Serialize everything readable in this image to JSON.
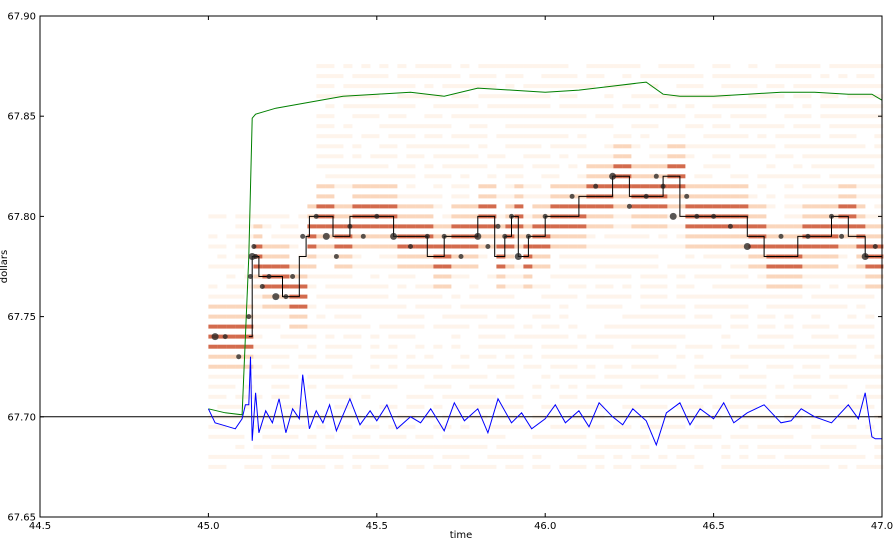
{
  "chart_data": {
    "type": "line",
    "title": "",
    "xlabel": "time",
    "ylabel": "dollars",
    "xlim": [
      44.5,
      47.0
    ],
    "ylim": [
      67.65,
      67.9
    ],
    "x_ticks": [
      "44.5",
      "45.0",
      "45.5",
      "46.0",
      "46.5",
      "47.0"
    ],
    "y_ticks": [
      "67.65",
      "67.70",
      "67.75",
      "67.80",
      "67.85",
      "67.90"
    ],
    "grid": false,
    "legend": "none",
    "reference_line": {
      "y": 67.7,
      "color": "#000000"
    },
    "colors": {
      "upper": "#008000",
      "lower": "#0000ff",
      "mid": "#000000",
      "heat_low": "#fde0c5",
      "heat_mid": "#f4a36a",
      "heat_high": "#c43a12",
      "markers": "#222222"
    },
    "series": [
      {
        "color": "#008000",
        "x": [
          45.0,
          45.05,
          45.1,
          45.12,
          45.13,
          45.14,
          45.2,
          45.3,
          45.4,
          45.5,
          45.6,
          45.7,
          45.8,
          45.9,
          46.0,
          46.1,
          46.2,
          46.3,
          46.35,
          46.4,
          46.5,
          46.6,
          46.7,
          46.8,
          46.9,
          46.97,
          47.0
        ],
        "y": [
          67.704,
          67.702,
          67.701,
          67.78,
          67.849,
          67.851,
          67.854,
          67.857,
          67.86,
          67.861,
          67.862,
          67.86,
          67.864,
          67.863,
          67.862,
          67.863,
          67.865,
          67.867,
          67.861,
          67.86,
          67.86,
          67.861,
          67.862,
          67.862,
          67.861,
          67.861,
          67.858
        ]
      },
      {
        "color": "#000000",
        "x": [
          45.12,
          45.13,
          45.14,
          45.15,
          45.2,
          45.22,
          45.24,
          45.27,
          45.29,
          45.3,
          45.35,
          45.37,
          45.4,
          45.42,
          45.5,
          45.55,
          45.6,
          45.65,
          45.7,
          45.75,
          45.8,
          45.85,
          45.88,
          45.9,
          45.92,
          45.95,
          46.0,
          46.05,
          46.1,
          46.15,
          46.2,
          46.25,
          46.3,
          46.35,
          46.4,
          46.45,
          46.5,
          46.55,
          46.6,
          46.65,
          46.7,
          46.75,
          46.8,
          46.85,
          46.9,
          46.95,
          47.0
        ],
        "y": [
          67.74,
          67.78,
          67.78,
          67.77,
          67.77,
          67.76,
          67.76,
          67.78,
          67.79,
          67.8,
          67.8,
          67.79,
          67.79,
          67.8,
          67.8,
          67.79,
          67.79,
          67.78,
          67.79,
          67.79,
          67.8,
          67.78,
          67.79,
          67.8,
          67.78,
          67.79,
          67.8,
          67.8,
          67.81,
          67.81,
          67.82,
          67.81,
          67.81,
          67.82,
          67.8,
          67.8,
          67.8,
          67.8,
          67.79,
          67.78,
          67.78,
          67.79,
          67.79,
          67.8,
          67.79,
          67.78,
          67.78
        ]
      },
      {
        "color": "#0000ff",
        "x": [
          45.0,
          45.02,
          45.04,
          45.06,
          45.08,
          45.1,
          45.11,
          45.12,
          45.125,
          45.13,
          45.14,
          45.15,
          45.17,
          45.19,
          45.21,
          45.23,
          45.25,
          45.27,
          45.28,
          45.3,
          45.32,
          45.34,
          45.36,
          45.38,
          45.4,
          45.42,
          45.45,
          45.48,
          45.5,
          45.53,
          45.56,
          45.6,
          45.63,
          45.66,
          45.7,
          45.73,
          45.76,
          45.8,
          45.83,
          45.86,
          45.9,
          45.93,
          45.96,
          46.0,
          46.03,
          46.06,
          46.1,
          46.13,
          46.16,
          46.2,
          46.23,
          46.26,
          46.3,
          46.33,
          46.36,
          46.4,
          46.43,
          46.46,
          46.5,
          46.53,
          46.56,
          46.6,
          46.65,
          46.7,
          46.73,
          46.76,
          46.8,
          46.85,
          46.9,
          46.93,
          46.95,
          46.97,
          46.98,
          47.0
        ],
        "y": [
          67.704,
          67.697,
          67.696,
          67.695,
          67.694,
          67.699,
          67.706,
          67.706,
          67.73,
          67.688,
          67.712,
          67.692,
          67.703,
          67.697,
          67.709,
          67.692,
          67.704,
          67.699,
          67.721,
          67.694,
          67.703,
          67.697,
          67.706,
          67.693,
          67.701,
          67.709,
          67.696,
          67.703,
          67.698,
          67.706,
          67.694,
          67.7,
          67.697,
          67.704,
          67.693,
          67.707,
          67.698,
          67.704,
          67.692,
          67.709,
          67.697,
          67.702,
          67.694,
          67.699,
          67.706,
          67.697,
          67.703,
          67.695,
          67.707,
          67.7,
          67.696,
          67.704,
          67.698,
          67.686,
          67.702,
          67.707,
          67.696,
          67.704,
          67.699,
          67.707,
          67.697,
          67.702,
          67.706,
          67.697,
          67.698,
          67.704,
          67.7,
          67.697,
          67.706,
          67.699,
          67.712,
          67.69,
          67.689,
          67.689
        ]
      }
    ],
    "heatmap_levels": [
      67.675,
      67.68,
      67.685,
      67.69,
      67.695,
      67.7,
      67.705,
      67.71,
      67.715,
      67.72,
      67.725,
      67.73,
      67.735,
      67.74,
      67.745,
      67.75,
      67.755,
      67.76,
      67.765,
      67.77,
      67.775,
      67.78,
      67.785,
      67.79,
      67.795,
      67.8,
      67.805,
      67.81,
      67.815,
      67.82,
      67.825,
      67.83,
      67.835,
      67.84,
      67.845,
      67.85,
      67.855,
      67.86,
      67.865,
      67.87,
      67.875
    ],
    "scatter_points": {
      "x": [
        45.02,
        45.05,
        45.09,
        45.12,
        45.125,
        45.13,
        45.135,
        45.14,
        45.16,
        45.18,
        45.2,
        45.23,
        45.25,
        45.28,
        45.32,
        45.35,
        45.38,
        45.42,
        45.46,
        45.5,
        45.55,
        45.6,
        45.65,
        45.7,
        45.75,
        45.8,
        45.83,
        45.86,
        45.88,
        45.9,
        45.92,
        45.95,
        46.0,
        46.08,
        46.15,
        46.2,
        46.25,
        46.3,
        46.33,
        46.35,
        46.38,
        46.42,
        46.45,
        46.5,
        46.55,
        46.6,
        46.7,
        46.78,
        46.85,
        46.88,
        46.95,
        46.98
      ],
      "y": [
        67.74,
        67.74,
        67.73,
        67.75,
        67.77,
        67.78,
        67.785,
        67.78,
        67.765,
        67.77,
        67.76,
        67.76,
        67.77,
        67.79,
        67.8,
        67.79,
        67.78,
        67.795,
        67.79,
        67.8,
        67.79,
        67.785,
        67.79,
        67.79,
        67.78,
        67.79,
        67.785,
        67.795,
        67.79,
        67.8,
        67.78,
        67.79,
        67.8,
        67.81,
        67.815,
        67.82,
        67.805,
        67.81,
        67.82,
        67.815,
        67.8,
        67.81,
        67.8,
        67.8,
        67.795,
        67.785,
        67.79,
        67.79,
        67.8,
        67.79,
        67.78,
        67.785
      ]
    }
  }
}
